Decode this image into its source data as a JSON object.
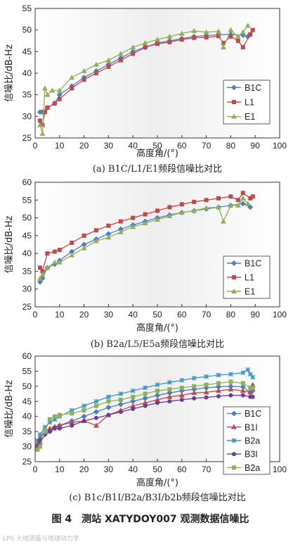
{
  "figure_caption": "图 4　测站 XATYDOY007 观测数据信噪比",
  "watermark": "LPS 大地测量与地球动力学",
  "chart_data": [
    {
      "type": "line",
      "caption": "(a) B1C/L1/E1频段信噪比对比",
      "xlabel": "高度角/(°)",
      "ylabel": "信噪比/dB-Hz",
      "xlim": [
        0,
        100
      ],
      "ylim": [
        25,
        55
      ],
      "xticks": [
        "0",
        "10",
        "20",
        "30",
        "40",
        "50",
        "60",
        "70",
        "80",
        "90",
        "100"
      ],
      "yticks": [
        "25",
        "30",
        "35",
        "40",
        "45",
        "50",
        "55"
      ],
      "legend_position": "bottom-right",
      "series": [
        {
          "name": "B1C",
          "color": "#4f7dbf",
          "marker": "diamond",
          "x": [
            2,
            3,
            5,
            8,
            10,
            15,
            20,
            25,
            30,
            35,
            40,
            45,
            50,
            55,
            60,
            65,
            70,
            75,
            80,
            85,
            87
          ],
          "y": [
            31,
            31,
            32,
            33,
            35,
            37,
            39,
            40.5,
            42,
            43.5,
            45,
            46,
            47,
            47.5,
            48,
            48.5,
            48.7,
            48.9,
            49,
            48.8,
            48.5
          ]
        },
        {
          "name": "L1",
          "color": "#c04a4a",
          "marker": "square",
          "x": [
            2,
            3,
            4,
            5,
            8,
            10,
            15,
            20,
            25,
            30,
            35,
            40,
            45,
            50,
            55,
            60,
            65,
            70,
            75,
            77,
            80,
            83,
            85,
            88,
            89
          ],
          "y": [
            29,
            28,
            31,
            32,
            33,
            34,
            36.5,
            38.5,
            40,
            41.5,
            43,
            44.5,
            46,
            46.8,
            47.2,
            47.8,
            48.2,
            48.3,
            48.6,
            47,
            48.5,
            47.5,
            46,
            49,
            50
          ]
        },
        {
          "name": "E1",
          "color": "#8fb05a",
          "marker": "triangle",
          "x": [
            2,
            3,
            4,
            5,
            7,
            10,
            15,
            20,
            25,
            30,
            35,
            40,
            45,
            50,
            55,
            60,
            65,
            70,
            75,
            77,
            80,
            83,
            85,
            87
          ],
          "y": [
            28,
            26,
            36.5,
            35,
            36,
            36,
            39,
            40.5,
            42,
            43,
            44.5,
            46,
            47,
            47.8,
            48.5,
            49.2,
            49.8,
            49.5,
            49.7,
            46,
            50,
            48.5,
            49.5,
            51
          ]
        }
      ]
    },
    {
      "type": "line",
      "caption": "(b) B2a/L5/E5a频段信噪比对比",
      "xlabel": "高度角/(°)",
      "ylabel": "信噪比/dB-Hz",
      "xlim": [
        0,
        100
      ],
      "ylim": [
        25,
        60
      ],
      "xticks": [
        "0",
        "10",
        "20",
        "30",
        "40",
        "50",
        "60",
        "70",
        "80",
        "90",
        "100"
      ],
      "yticks": [
        "25",
        "30",
        "35",
        "40",
        "45",
        "50",
        "55",
        "60"
      ],
      "legend_position": "bottom-right",
      "series": [
        {
          "name": "B1C",
          "color": "#4f7dbf",
          "marker": "diamond",
          "x": [
            2,
            3,
            5,
            8,
            10,
            15,
            20,
            25,
            30,
            35,
            40,
            45,
            50,
            55,
            60,
            65,
            70,
            75,
            80,
            85,
            88
          ],
          "y": [
            32,
            33,
            36,
            37,
            38,
            40.5,
            42.5,
            44,
            45.5,
            46.8,
            48,
            49,
            50,
            50.8,
            51.5,
            52,
            52.5,
            53,
            53.5,
            54,
            53
          ]
        },
        {
          "name": "L1",
          "color": "#c04a4a",
          "marker": "square",
          "x": [
            2,
            3,
            5,
            8,
            10,
            15,
            20,
            25,
            30,
            35,
            40,
            45,
            50,
            55,
            60,
            65,
            70,
            75,
            80,
            83,
            85,
            88,
            89
          ],
          "y": [
            36,
            35,
            40,
            40.5,
            41,
            43,
            45,
            46.5,
            47.8,
            49,
            50,
            51,
            52,
            53,
            53.8,
            54.5,
            55,
            55.5,
            56,
            55,
            57,
            55.5,
            56
          ]
        },
        {
          "name": "E1",
          "color": "#8fb05a",
          "marker": "triangle",
          "x": [
            2,
            3,
            5,
            8,
            10,
            15,
            20,
            25,
            30,
            35,
            40,
            45,
            50,
            55,
            60,
            65,
            70,
            75,
            77,
            80,
            83,
            85,
            87
          ],
          "y": [
            33,
            34,
            36,
            37.5,
            37.5,
            39.5,
            41.5,
            43.5,
            44.5,
            46,
            47.5,
            48.5,
            49.5,
            50.5,
            51.5,
            52,
            52.8,
            53,
            49,
            53.5,
            53.5,
            55.5,
            54
          ]
        }
      ]
    },
    {
      "type": "line",
      "caption": "(c) B1c/B1I/B2a/B3I/b2b频段信噪比对比",
      "xlabel": "高度角/(°)",
      "ylabel": "信噪比/dB-Hz",
      "xlim": [
        0,
        100
      ],
      "ylim": [
        25,
        60
      ],
      "xticks": [
        "0",
        "10",
        "20",
        "30",
        "40",
        "50",
        "60",
        "70",
        "80",
        "90",
        "100"
      ],
      "yticks": [
        "25",
        "30",
        "35",
        "40",
        "45",
        "50",
        "55",
        "60"
      ],
      "legend_position": "bottom-right",
      "series": [
        {
          "name": "B1C",
          "color": "#4f7dbf",
          "marker": "diamond",
          "x": [
            1,
            2,
            4,
            6,
            8,
            10,
            15,
            20,
            25,
            30,
            35,
            40,
            45,
            50,
            55,
            60,
            65,
            70,
            75,
            80,
            85,
            88,
            89
          ],
          "y": [
            30,
            31,
            34,
            35,
            36.5,
            37,
            38.5,
            40,
            41.5,
            43,
            44,
            45,
            46,
            47,
            47.8,
            48.5,
            49,
            49.5,
            49.8,
            50,
            49.8,
            48,
            48.5
          ]
        },
        {
          "name": "B1I",
          "color": "#c04a4a",
          "marker": "triangle",
          "x": [
            1,
            2,
            4,
            6,
            8,
            10,
            15,
            20,
            25,
            30,
            35,
            40,
            45,
            50,
            55,
            60,
            65,
            70,
            75,
            80,
            85,
            88,
            89
          ],
          "y": [
            31,
            33,
            35,
            36,
            36.5,
            37,
            38,
            38.5,
            37,
            40.5,
            42,
            43.5,
            44.5,
            45.5,
            46.5,
            47,
            47.8,
            48,
            48.5,
            49,
            48.5,
            48,
            50.5
          ]
        },
        {
          "name": "B2a",
          "color": "#3f95c0",
          "marker": "asterisk",
          "x": [
            1,
            2,
            4,
            6,
            8,
            10,
            15,
            20,
            25,
            30,
            35,
            40,
            45,
            50,
            55,
            60,
            65,
            70,
            75,
            80,
            85,
            87,
            88,
            89
          ],
          "y": [
            32,
            34,
            36.5,
            38,
            39,
            40,
            42,
            43.5,
            45,
            46.5,
            47.5,
            48.5,
            49.5,
            50.5,
            51.3,
            52,
            52.7,
            53.2,
            53.7,
            54,
            54.5,
            55.5,
            54,
            53
          ]
        },
        {
          "name": "B3I",
          "color": "#6a3d9a",
          "marker": "circle",
          "x": [
            1,
            2,
            4,
            6,
            8,
            10,
            15,
            20,
            25,
            30,
            35,
            40,
            45,
            50,
            55,
            60,
            65,
            70,
            75,
            80,
            85,
            88,
            89
          ],
          "y": [
            30,
            32,
            34,
            35,
            36,
            36,
            37,
            38.5,
            39.5,
            40.5,
            41.5,
            42.5,
            43.5,
            44.5,
            45,
            45.5,
            46,
            46.3,
            46.7,
            47,
            47,
            46.5,
            46.5
          ]
        },
        {
          "name": "B2a",
          "color": "#8fb05a",
          "marker": "square",
          "x": [
            1,
            2,
            4,
            6,
            8,
            10,
            15,
            20,
            25,
            30,
            35,
            40,
            45,
            50,
            55,
            60,
            65,
            70,
            75,
            80,
            85,
            88,
            89
          ],
          "y": [
            29,
            30,
            35,
            39,
            40,
            40.5,
            41,
            42,
            43.5,
            45,
            45.5,
            46.5,
            47.5,
            48.5,
            49,
            49.5,
            50,
            50.5,
            51,
            51.5,
            51,
            49.5,
            49.5
          ]
        }
      ]
    }
  ]
}
